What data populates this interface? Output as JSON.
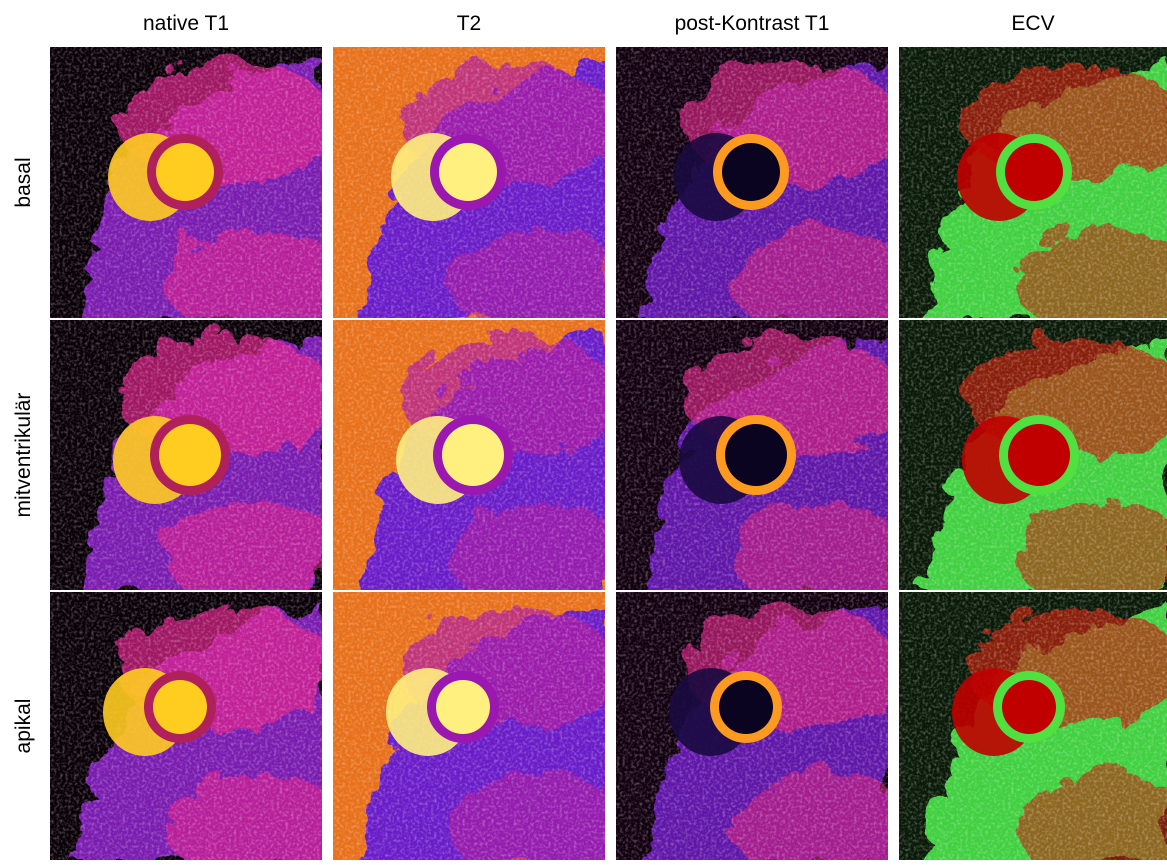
{
  "columns": [
    "native T1",
    "T2",
    "post-Kontrast T1",
    "ECV"
  ],
  "rows": [
    "basal",
    "mitventrikulär",
    "apikal"
  ]
}
